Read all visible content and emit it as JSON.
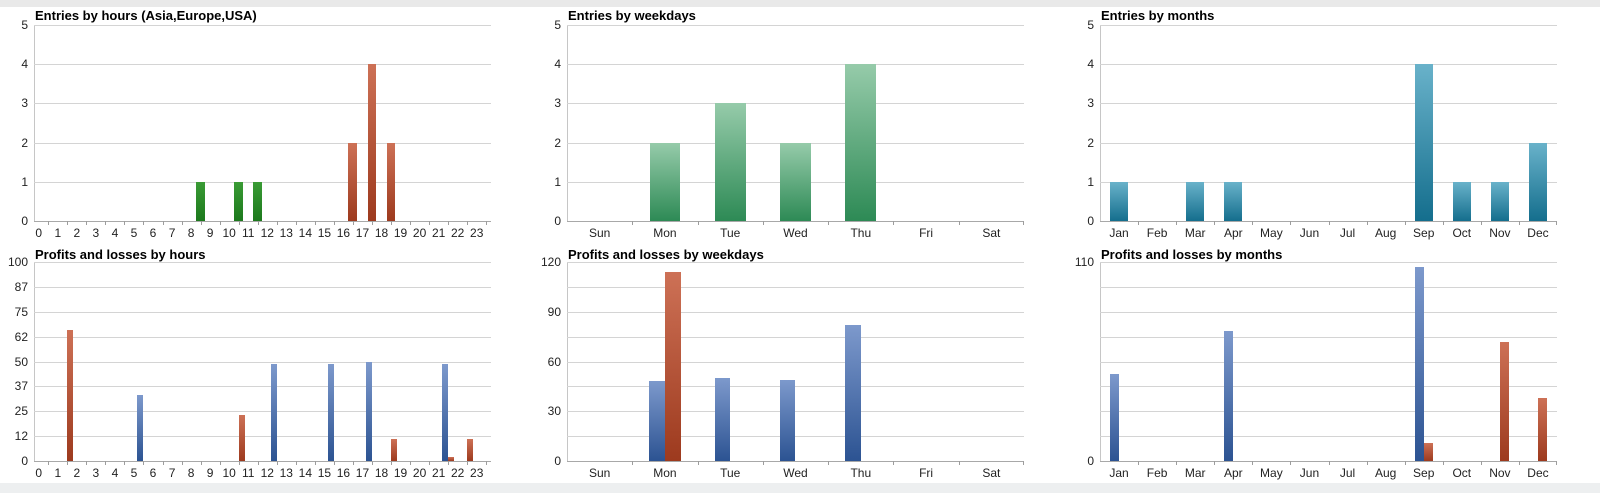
{
  "page": {
    "background_strip_color": "#e9e9e9"
  },
  "colors": {
    "green-solid": [
      "#3a9b35",
      "#1c791c"
    ],
    "green": [
      "#96cbaa",
      "#2d8a55"
    ],
    "teal": [
      "#69b2ca",
      "#146e8d"
    ],
    "blue": [
      "#7d99cc",
      "#2c5392"
    ],
    "red": [
      "#cd7156",
      "#9d3a1e"
    ],
    "gridline": "#d4d4d4"
  },
  "chart_data": [
    {
      "type": "bar",
      "title": "Entries by hours (Asia,Europe,USA)",
      "bar_layout": "centered",
      "x_axis": {
        "mode": "offset",
        "categories": [
          "0",
          "1",
          "2",
          "3",
          "4",
          "5",
          "6",
          "7",
          "8",
          "9",
          "10",
          "11",
          "12",
          "13",
          "14",
          "15",
          "16",
          "17",
          "18",
          "19",
          "20",
          "21",
          "22",
          "23"
        ]
      },
      "y_axis": {
        "max": 5,
        "intervals": 5,
        "labels": [
          {
            "v": 0,
            "t": "0"
          },
          {
            "v": 1,
            "t": "1"
          },
          {
            "v": 2,
            "t": "2"
          },
          {
            "v": 3,
            "t": "3"
          },
          {
            "v": 4,
            "t": "4"
          },
          {
            "v": 5,
            "t": "5"
          }
        ]
      },
      "series": [
        {
          "name": "entries-green",
          "color": "green-solid",
          "points": {
            "8": 1,
            "10": 1,
            "11": 1
          }
        },
        {
          "name": "entries-red",
          "color": "red",
          "points": {
            "16": 2,
            "17": 4,
            "18": 2
          }
        }
      ]
    },
    {
      "type": "bar",
      "title": "Entries by weekdays",
      "bar_layout": "centered",
      "x_axis": {
        "mode": "center",
        "categories": [
          "Sun",
          "Mon",
          "Tue",
          "Wed",
          "Thu",
          "Fri",
          "Sat"
        ]
      },
      "y_axis": {
        "max": 5,
        "intervals": 5,
        "labels": [
          {
            "v": 0,
            "t": "0"
          },
          {
            "v": 1,
            "t": "1"
          },
          {
            "v": 2,
            "t": "2"
          },
          {
            "v": 3,
            "t": "3"
          },
          {
            "v": 4,
            "t": "4"
          },
          {
            "v": 5,
            "t": "5"
          }
        ]
      },
      "series": [
        {
          "name": "entries",
          "color": "green",
          "points": {
            "Mon": 2,
            "Tue": 3,
            "Wed": 2,
            "Thu": 4
          }
        }
      ]
    },
    {
      "type": "bar",
      "title": "Entries by months",
      "bar_layout": "centered",
      "x_axis": {
        "mode": "center",
        "categories": [
          "Jan",
          "Feb",
          "Mar",
          "Apr",
          "May",
          "Jun",
          "Jul",
          "Aug",
          "Sep",
          "Oct",
          "Nov",
          "Dec"
        ]
      },
      "y_axis": {
        "max": 5,
        "intervals": 5,
        "labels": [
          {
            "v": 0,
            "t": "0"
          },
          {
            "v": 1,
            "t": "1"
          },
          {
            "v": 2,
            "t": "2"
          },
          {
            "v": 3,
            "t": "3"
          },
          {
            "v": 4,
            "t": "4"
          },
          {
            "v": 5,
            "t": "5"
          }
        ]
      },
      "series": [
        {
          "name": "entries",
          "color": "teal",
          "points": {
            "Jan": 1,
            "Mar": 1,
            "Apr": 1,
            "Sep": 4,
            "Oct": 1,
            "Nov": 1,
            "Dec": 2
          }
        }
      ]
    },
    {
      "type": "bar",
      "title": "Profits and losses by hours",
      "bar_layout": "paired",
      "x_axis": {
        "mode": "offset",
        "categories": [
          "0",
          "1",
          "2",
          "3",
          "4",
          "5",
          "6",
          "7",
          "8",
          "9",
          "10",
          "11",
          "12",
          "13",
          "14",
          "15",
          "16",
          "17",
          "18",
          "19",
          "20",
          "21",
          "22",
          "23"
        ]
      },
      "y_axis": {
        "max": 100,
        "intervals": 8,
        "labels": [
          {
            "v": 0,
            "t": "0"
          },
          {
            "v": 12.5,
            "t": "12"
          },
          {
            "v": 25,
            "t": "25"
          },
          {
            "v": 37.5,
            "t": "37"
          },
          {
            "v": 50,
            "t": "50"
          },
          {
            "v": 62.5,
            "t": "62"
          },
          {
            "v": 75,
            "t": "75"
          },
          {
            "v": 87.5,
            "t": "87"
          },
          {
            "v": 100,
            "t": "100"
          }
        ]
      },
      "series": [
        {
          "name": "profits",
          "color": "blue",
          "points": {
            "5": 33,
            "12": 49,
            "15": 49,
            "17": 50,
            "21": 49
          }
        },
        {
          "name": "losses",
          "color": "red",
          "points": {
            "1": 66,
            "10": 23,
            "18": 11,
            "21": 2,
            "22": 11
          }
        }
      ]
    },
    {
      "type": "bar",
      "title": "Profits and losses by weekdays",
      "bar_layout": "paired",
      "x_axis": {
        "mode": "center",
        "categories": [
          "Sun",
          "Mon",
          "Tue",
          "Wed",
          "Thu",
          "Fri",
          "Sat"
        ]
      },
      "y_axis": {
        "max": 120,
        "intervals": 8,
        "labels": [
          {
            "v": 0,
            "t": "0"
          },
          {
            "v": 30,
            "t": "30"
          },
          {
            "v": 60,
            "t": "60"
          },
          {
            "v": 90,
            "t": "90"
          },
          {
            "v": 120,
            "t": "120"
          }
        ]
      },
      "series": [
        {
          "name": "profits",
          "color": "blue",
          "points": {
            "Mon": 48,
            "Tue": 50,
            "Wed": 49,
            "Thu": 82
          }
        },
        {
          "name": "losses",
          "color": "red",
          "points": {
            "Mon": 114
          }
        }
      ]
    },
    {
      "type": "bar",
      "title": "Profits and losses by months",
      "bar_layout": "paired",
      "x_axis": {
        "mode": "center",
        "categories": [
          "Jan",
          "Feb",
          "Mar",
          "Apr",
          "May",
          "Jun",
          "Jul",
          "Aug",
          "Sep",
          "Oct",
          "Nov",
          "Dec"
        ]
      },
      "y_axis": {
        "max": 110,
        "intervals": 8,
        "labels": [
          {
            "v": 0,
            "t": "0"
          },
          {
            "v": 110,
            "t": "110"
          }
        ]
      },
      "series": [
        {
          "name": "profits",
          "color": "blue",
          "points": {
            "Jan": 48,
            "Apr": 72,
            "Sep": 107
          }
        },
        {
          "name": "losses",
          "color": "red",
          "points": {
            "Sep": 10,
            "Nov": 66,
            "Dec": 35
          }
        }
      ]
    }
  ]
}
